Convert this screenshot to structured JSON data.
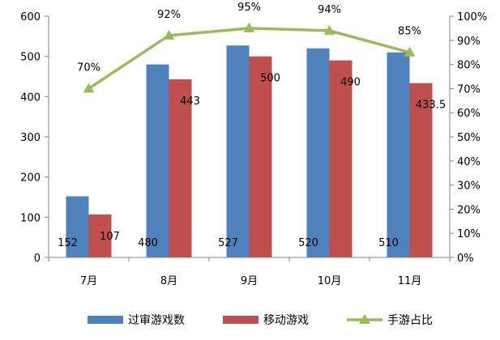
{
  "chart_data": {
    "type": "bar",
    "categories": [
      "7月",
      "8月",
      "9月",
      "10月",
      "11月"
    ],
    "series": [
      {
        "name": "过审游戏数",
        "type": "bar",
        "axis": "left",
        "color": "#4F81BD",
        "values": [
          152,
          480,
          527,
          520,
          510
        ],
        "labels": [
          "152",
          "480",
          "527",
          "520",
          "510"
        ]
      },
      {
        "name": "移动游戏",
        "type": "bar",
        "axis": "left",
        "color": "#C0504D",
        "values": [
          107,
          443,
          500,
          490,
          433.5
        ],
        "labels": [
          "107",
          "443",
          "500",
          "490",
          "433.5"
        ]
      },
      {
        "name": "手游占比",
        "type": "line",
        "axis": "right",
        "color": "#9BBB59",
        "values": [
          70,
          92,
          95,
          94,
          85
        ],
        "labels": [
          "70%",
          "92%",
          "95%",
          "94%",
          "85%"
        ]
      }
    ],
    "ylim": [
      0,
      600
    ],
    "yticks": [
      "0",
      "100",
      "200",
      "300",
      "400",
      "500",
      "600"
    ],
    "y2lim": [
      0,
      100
    ],
    "y2ticks": [
      "0%",
      "10%",
      "20%",
      "30%",
      "40%",
      "50%",
      "60%",
      "70%",
      "80%",
      "90%",
      "100%"
    ],
    "grid": false,
    "legend_position": "bottom"
  }
}
